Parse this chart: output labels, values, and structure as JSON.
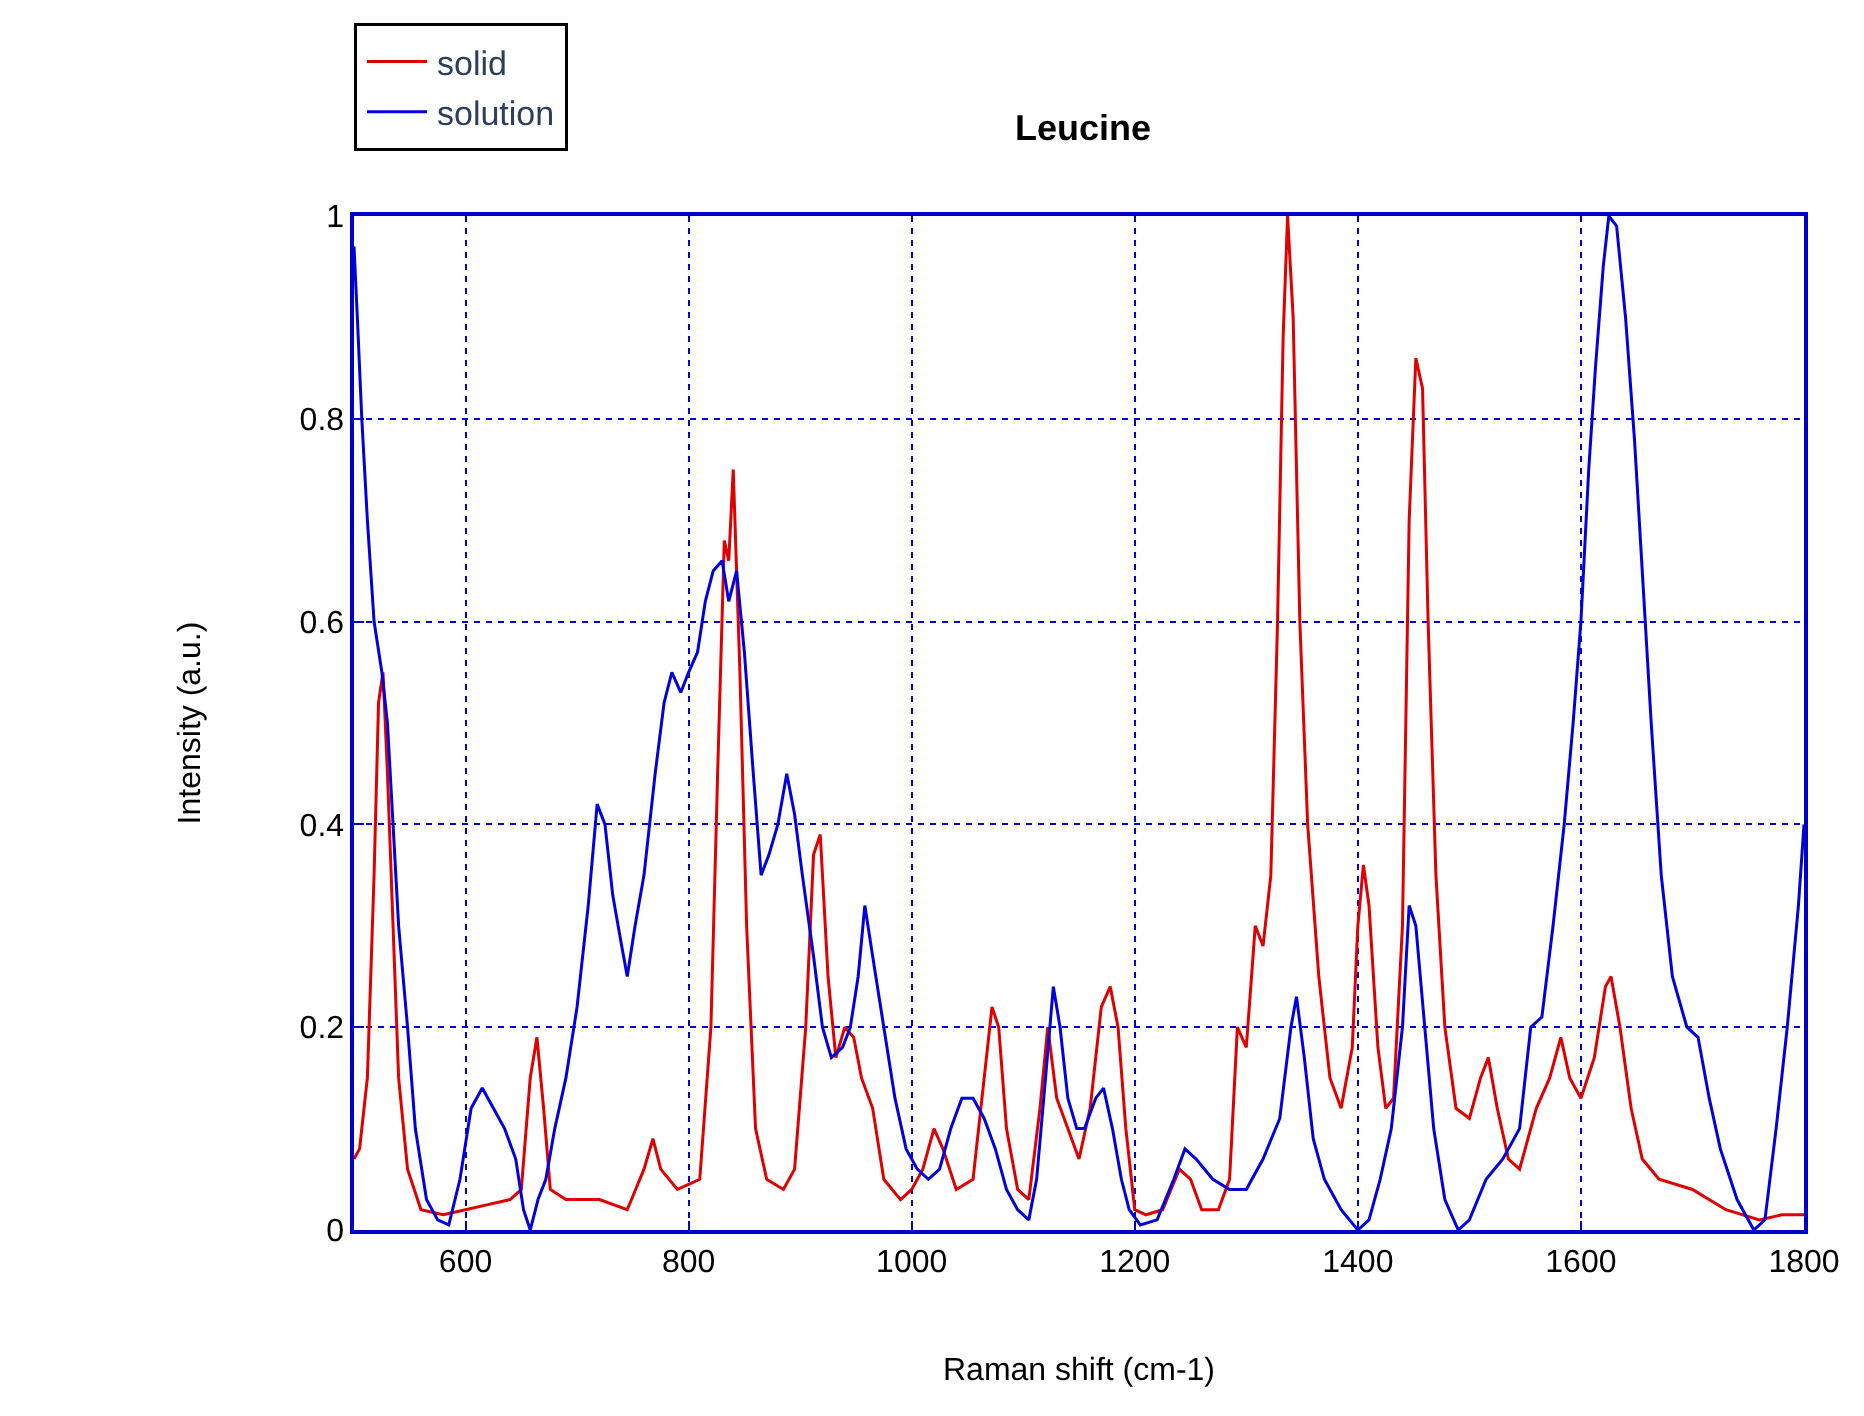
{
  "chart_data": {
    "type": "line",
    "title": "Leucine",
    "xlabel": "Raman shift (cm-1)",
    "ylabel": "Intensity (a.u.)",
    "xlim": [
      500,
      1800
    ],
    "xticks": [
      600,
      800,
      1000,
      1200,
      1400,
      1600,
      1800
    ],
    "ylim": [
      0,
      1
    ],
    "yticks": [
      0,
      0.2,
      0.4,
      0.6,
      0.8,
      1
    ],
    "grid": true,
    "legend": "top left",
    "line_style": "solid",
    "series": [
      {
        "name": "solid",
        "color": "#e00000",
        "x": [
          500,
          505,
          512,
          518,
          522,
          526,
          530,
          535,
          540,
          548,
          560,
          580,
          600,
          620,
          640,
          650,
          658,
          664,
          670,
          676,
          690,
          720,
          745,
          760,
          768,
          775,
          790,
          810,
          820,
          826,
          832,
          836,
          840,
          846,
          852,
          860,
          870,
          885,
          895,
          905,
          912,
          918,
          925,
          932,
          940,
          948,
          955,
          965,
          975,
          990,
          1000,
          1010,
          1020,
          1028,
          1040,
          1055,
          1065,
          1072,
          1078,
          1085,
          1095,
          1105,
          1115,
          1122,
          1130,
          1140,
          1150,
          1160,
          1170,
          1178,
          1185,
          1192,
          1200,
          1210,
          1225,
          1240,
          1250,
          1260,
          1275,
          1285,
          1292,
          1300,
          1308,
          1315,
          1322,
          1328,
          1333,
          1337,
          1342,
          1348,
          1355,
          1365,
          1375,
          1385,
          1395,
          1400,
          1405,
          1410,
          1418,
          1425,
          1432,
          1440,
          1446,
          1452,
          1458,
          1463,
          1470,
          1478,
          1488,
          1500,
          1510,
          1517,
          1525,
          1535,
          1545,
          1560,
          1572,
          1582,
          1590,
          1600,
          1612,
          1622,
          1627,
          1635,
          1645,
          1655,
          1670,
          1700,
          1730,
          1760,
          1780,
          1800
        ],
        "values": [
          0.07,
          0.08,
          0.15,
          0.35,
          0.52,
          0.55,
          0.45,
          0.3,
          0.15,
          0.06,
          0.02,
          0.015,
          0.02,
          0.025,
          0.03,
          0.04,
          0.15,
          0.19,
          0.12,
          0.04,
          0.03,
          0.03,
          0.02,
          0.06,
          0.09,
          0.06,
          0.04,
          0.05,
          0.2,
          0.45,
          0.68,
          0.66,
          0.75,
          0.55,
          0.3,
          0.1,
          0.05,
          0.04,
          0.06,
          0.2,
          0.37,
          0.39,
          0.25,
          0.17,
          0.2,
          0.19,
          0.15,
          0.12,
          0.05,
          0.03,
          0.04,
          0.06,
          0.1,
          0.08,
          0.04,
          0.05,
          0.15,
          0.22,
          0.2,
          0.1,
          0.04,
          0.03,
          0.12,
          0.2,
          0.13,
          0.1,
          0.07,
          0.12,
          0.22,
          0.24,
          0.2,
          0.1,
          0.02,
          0.015,
          0.02,
          0.06,
          0.05,
          0.02,
          0.02,
          0.05,
          0.2,
          0.18,
          0.3,
          0.28,
          0.35,
          0.6,
          0.88,
          1.0,
          0.9,
          0.6,
          0.4,
          0.25,
          0.15,
          0.12,
          0.18,
          0.3,
          0.36,
          0.32,
          0.18,
          0.12,
          0.13,
          0.3,
          0.7,
          0.86,
          0.83,
          0.6,
          0.35,
          0.2,
          0.12,
          0.11,
          0.15,
          0.17,
          0.12,
          0.07,
          0.06,
          0.12,
          0.15,
          0.19,
          0.15,
          0.13,
          0.17,
          0.24,
          0.25,
          0.2,
          0.12,
          0.07,
          0.05,
          0.04,
          0.02,
          0.01,
          0.015,
          0.015
        ]
      },
      {
        "name": "solution",
        "color": "#0000e0",
        "x": [
          500,
          503,
          507,
          512,
          518,
          525,
          530,
          535,
          540,
          548,
          555,
          565,
          575,
          585,
          595,
          605,
          615,
          625,
          635,
          645,
          652,
          658,
          665,
          672,
          680,
          690,
          700,
          710,
          718,
          725,
          732,
          740,
          745,
          752,
          760,
          770,
          778,
          785,
          793,
          800,
          808,
          815,
          822,
          830,
          836,
          843,
          850,
          858,
          865,
          872,
          880,
          888,
          895,
          902,
          912,
          920,
          928,
          938,
          945,
          952,
          958,
          965,
          975,
          985,
          995,
          1005,
          1015,
          1025,
          1035,
          1045,
          1055,
          1065,
          1075,
          1085,
          1095,
          1105,
          1112,
          1120,
          1127,
          1133,
          1140,
          1148,
          1155,
          1165,
          1172,
          1180,
          1188,
          1195,
          1205,
          1220,
          1235,
          1245,
          1255,
          1270,
          1285,
          1300,
          1315,
          1330,
          1340,
          1345,
          1352,
          1360,
          1370,
          1385,
          1400,
          1410,
          1420,
          1430,
          1440,
          1446,
          1452,
          1460,
          1468,
          1478,
          1490,
          1500,
          1515,
          1530,
          1545,
          1555,
          1565,
          1575,
          1585,
          1593,
          1600,
          1607,
          1613,
          1620,
          1625,
          1632,
          1640,
          1648,
          1655,
          1663,
          1672,
          1682,
          1695,
          1705,
          1715,
          1725,
          1740,
          1755,
          1765,
          1775,
          1785,
          1795,
          1800
        ],
        "values": [
          0.97,
          0.9,
          0.8,
          0.7,
          0.6,
          0.55,
          0.5,
          0.4,
          0.3,
          0.2,
          0.1,
          0.03,
          0.01,
          0.005,
          0.05,
          0.12,
          0.14,
          0.12,
          0.1,
          0.07,
          0.02,
          0.0,
          0.03,
          0.05,
          0.1,
          0.15,
          0.22,
          0.32,
          0.42,
          0.4,
          0.33,
          0.28,
          0.25,
          0.3,
          0.35,
          0.45,
          0.52,
          0.55,
          0.53,
          0.55,
          0.57,
          0.62,
          0.65,
          0.66,
          0.62,
          0.65,
          0.57,
          0.45,
          0.35,
          0.37,
          0.4,
          0.45,
          0.41,
          0.35,
          0.27,
          0.2,
          0.17,
          0.18,
          0.2,
          0.25,
          0.32,
          0.27,
          0.2,
          0.13,
          0.08,
          0.06,
          0.05,
          0.06,
          0.1,
          0.13,
          0.13,
          0.11,
          0.08,
          0.04,
          0.02,
          0.01,
          0.05,
          0.15,
          0.24,
          0.2,
          0.13,
          0.1,
          0.1,
          0.13,
          0.14,
          0.1,
          0.05,
          0.02,
          0.005,
          0.01,
          0.05,
          0.08,
          0.07,
          0.05,
          0.04,
          0.04,
          0.07,
          0.11,
          0.2,
          0.23,
          0.17,
          0.09,
          0.05,
          0.02,
          0.0,
          0.01,
          0.05,
          0.1,
          0.2,
          0.32,
          0.3,
          0.2,
          0.1,
          0.03,
          0.0,
          0.01,
          0.05,
          0.07,
          0.1,
          0.2,
          0.21,
          0.3,
          0.4,
          0.5,
          0.6,
          0.75,
          0.85,
          0.95,
          1.0,
          0.99,
          0.9,
          0.78,
          0.65,
          0.5,
          0.35,
          0.25,
          0.2,
          0.19,
          0.13,
          0.08,
          0.03,
          0.0,
          0.01,
          0.1,
          0.2,
          0.32,
          0.4
        ]
      }
    ]
  }
}
